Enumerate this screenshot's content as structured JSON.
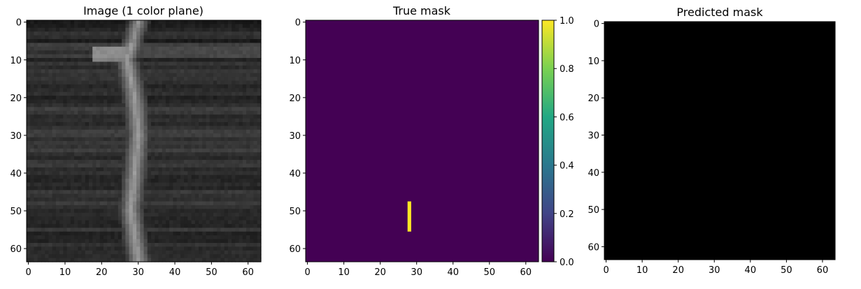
{
  "chart_data": [
    {
      "type": "heatmap",
      "title": "Image (1 color plane)",
      "colormap": "gray",
      "xlim": [
        -0.5,
        63.5
      ],
      "ylim": [
        63.5,
        -0.5
      ],
      "xticks": [
        0,
        10,
        20,
        30,
        40,
        50,
        60
      ],
      "yticks": [
        0,
        10,
        20,
        30,
        40,
        50,
        60
      ],
      "xticklabels": [
        "0",
        "10",
        "20",
        "30",
        "40",
        "50",
        "60"
      ],
      "yticklabels": [
        "0",
        "10",
        "20",
        "30",
        "40",
        "50",
        "60"
      ],
      "grid": false,
      "content": {
        "size": [
          64,
          64
        ],
        "background_level": 0.19,
        "bright_vertical_band": {
          "x_center_path": [
            [
              0,
              30
            ],
            [
              10,
              27
            ],
            [
              20,
              29
            ],
            [
              30,
              30
            ],
            [
              40,
              29
            ],
            [
              50,
              28
            ],
            [
              63,
              30
            ]
          ],
          "half_width": 2.5,
          "level": 0.5
        },
        "bright_horizontal_band": {
          "y_range": [
            7,
            9
          ],
          "x_range": [
            18,
            63
          ],
          "level": 0.28
        },
        "blob": {
          "x_range": [
            18,
            26
          ],
          "y_range": [
            7,
            10
          ],
          "level": 0.55
        }
      }
    },
    {
      "type": "heatmap",
      "title": "True mask",
      "colormap": "viridis",
      "xlim": [
        -0.5,
        63.5
      ],
      "ylim": [
        63.5,
        -0.5
      ],
      "xticks": [
        0,
        10,
        20,
        30,
        40,
        50,
        60
      ],
      "yticks": [
        0,
        10,
        20,
        30,
        40,
        50,
        60
      ],
      "xticklabels": [
        "0",
        "10",
        "20",
        "30",
        "40",
        "50",
        "60"
      ],
      "yticklabels": [
        "0",
        "10",
        "20",
        "30",
        "40",
        "50",
        "60"
      ],
      "grid": false,
      "background_value": 0.0,
      "mask_cells": {
        "x": 28,
        "y_range": [
          48,
          55
        ],
        "value": 1.0
      },
      "colorbar": {
        "ticks": [
          0.0,
          0.2,
          0.4,
          0.6,
          0.8,
          1.0
        ],
        "ticklabels": [
          "0.0",
          "0.2",
          "0.4",
          "0.6",
          "0.8",
          "1.0"
        ],
        "range": [
          0.0,
          1.0
        ]
      }
    },
    {
      "type": "heatmap",
      "title": "Predicted mask",
      "colormap": "gray",
      "xlim": [
        -0.5,
        63.5
      ],
      "ylim": [
        63.5,
        -0.5
      ],
      "xticks": [
        0,
        10,
        20,
        30,
        40,
        50,
        60
      ],
      "yticks": [
        0,
        10,
        20,
        30,
        40,
        50,
        60
      ],
      "xticklabels": [
        "0",
        "10",
        "20",
        "30",
        "40",
        "50",
        "60"
      ],
      "yticklabels": [
        "0",
        "10",
        "20",
        "30",
        "40",
        "50",
        "60"
      ],
      "grid": false,
      "background_value": 0.0
    }
  ]
}
